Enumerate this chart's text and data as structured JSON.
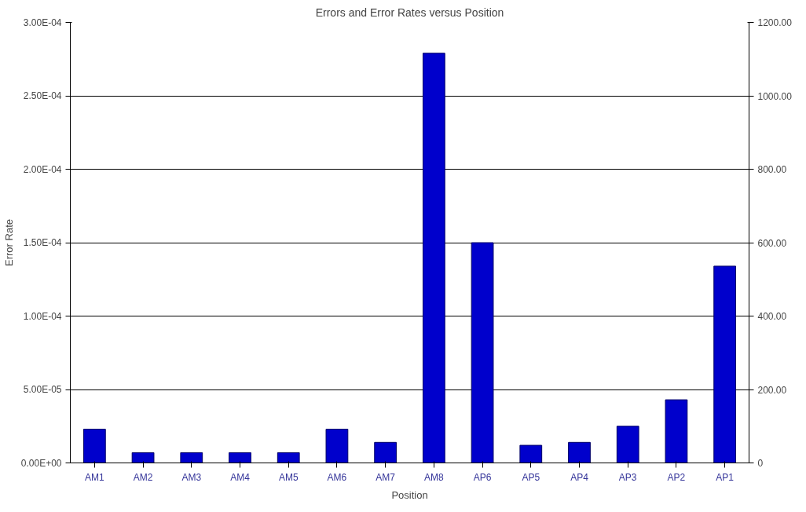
{
  "chart_data": {
    "type": "bar",
    "title": "Errors and Error Rates versus Position",
    "xlabel": "Position",
    "ylabel": "Error Rate",
    "categories": [
      "AM1",
      "AM2",
      "AM3",
      "AM4",
      "AM5",
      "AM6",
      "AM7",
      "AM8",
      "AP6",
      "AP5",
      "AP4",
      "AP3",
      "AP2",
      "AP1"
    ],
    "series": [
      {
        "color": "#0000cc",
        "values": [
          2.3e-05,
          7e-06,
          7e-06,
          7e-06,
          7e-06,
          2.3e-05,
          1.4e-05,
          0.000279,
          0.00015,
          1.2e-05,
          1.4e-05,
          2.5e-05,
          4.3e-05,
          0.000134
        ]
      }
    ],
    "ylim": [
      0,
      0.0003
    ],
    "yticks": [
      {
        "value": 0,
        "label": "0.00E+00"
      },
      {
        "value": 5e-05,
        "label": "5.00E-05"
      },
      {
        "value": 0.0001,
        "label": "1.00E-04"
      },
      {
        "value": 0.00015,
        "label": "1.50E-04"
      },
      {
        "value": 0.0002,
        "label": "2.00E-04"
      },
      {
        "value": 0.00025,
        "label": "2.50E-04"
      },
      {
        "value": 0.0003,
        "label": "3.00E-04"
      }
    ],
    "y2lim": [
      0,
      1200
    ],
    "y2ticks": [
      0,
      {
        "value": 200,
        "label": "200.00"
      },
      {
        "value": 400,
        "label": "400.00"
      },
      {
        "value": 600,
        "label": "600.00"
      },
      {
        "value": 800,
        "label": "800.00"
      },
      {
        "value": 1000,
        "label": "1000.00"
      },
      {
        "value": 1200,
        "label": "1200.00"
      }
    ],
    "grid": "y"
  }
}
